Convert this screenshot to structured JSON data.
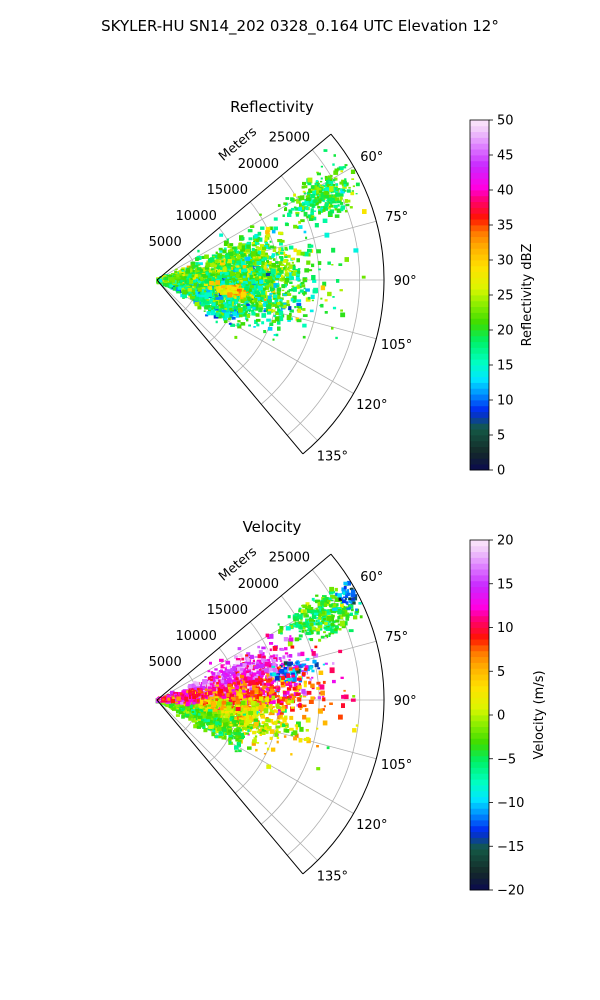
{
  "figure": {
    "title": "SKYLER-HU  SN14_202  0328_0.164 UTC Elevation 12°"
  },
  "chart_data": [
    {
      "type": "heatmap",
      "projection": "polar-sector",
      "title": "Reflectivity",
      "range_label": "Meters",
      "range_ticks": [
        5000,
        10000,
        15000,
        20000,
        25000
      ],
      "range_ticks_text": [
        "5000",
        "10000",
        "15000",
        "20000",
        "25000"
      ],
      "range_max": 28000,
      "azimuth_range": [
        50,
        140
      ],
      "azimuth_ticks": [
        60,
        75,
        90,
        105,
        120,
        135
      ],
      "azimuth_ticks_text": [
        "60°",
        "75°",
        "90°",
        "105°",
        "120°",
        "135°"
      ],
      "grid": true,
      "colorbar": {
        "label": "Reflectivity dBZ",
        "min": 0,
        "max": 50,
        "ticks": [
          0,
          5,
          10,
          15,
          20,
          25,
          30,
          35,
          40,
          45,
          50
        ],
        "ticks_text": [
          "0",
          "5",
          "10",
          "15",
          "20",
          "25",
          "30",
          "35",
          "40",
          "45",
          "50"
        ],
        "placement": "right"
      },
      "echo_regions": [
        {
          "az": 63,
          "r": 23000,
          "spread_az": 3.0,
          "spread_r": 2200,
          "count": 300,
          "mean": 20,
          "sd": 3
        },
        {
          "az": 78,
          "r": 11000,
          "spread_az": 7.0,
          "spread_r": 3800,
          "count": 650,
          "mean": 21,
          "sd": 4
        },
        {
          "az": 90,
          "r": 9000,
          "spread_az": 5.0,
          "spread_r": 5000,
          "count": 750,
          "mean": 21,
          "sd": 4
        },
        {
          "az": 100,
          "r": 9000,
          "spread_az": 6.0,
          "spread_r": 5000,
          "count": 750,
          "mean": 19,
          "sd": 4
        },
        {
          "az": 112,
          "r": 6500,
          "spread_az": 5.0,
          "spread_r": 3500,
          "count": 400,
          "mean": 17,
          "sd": 4
        },
        {
          "az": 84,
          "r": 3000,
          "spread_az": 6.0,
          "spread_r": 1800,
          "count": 400,
          "mean": 22,
          "sd": 4
        },
        {
          "az": 98,
          "r": 9500,
          "spread_az": 2.0,
          "spread_r": 1200,
          "count": 100,
          "mean": 30,
          "sd": 3
        }
      ]
    },
    {
      "type": "heatmap",
      "projection": "polar-sector",
      "title": "Velocity",
      "range_label": "Meters",
      "range_ticks": [
        5000,
        10000,
        15000,
        20000,
        25000
      ],
      "range_ticks_text": [
        "5000",
        "10000",
        "15000",
        "20000",
        "25000"
      ],
      "range_max": 28000,
      "azimuth_range": [
        50,
        140
      ],
      "azimuth_ticks": [
        60,
        75,
        90,
        105,
        120,
        135
      ],
      "azimuth_ticks_text": [
        "60°",
        "75°",
        "90°",
        "105°",
        "120°",
        "135°"
      ],
      "grid": true,
      "colorbar": {
        "label": "Velocity (m/s)",
        "min": -20,
        "max": 20,
        "ticks": [
          -20,
          -15,
          -10,
          -5,
          0,
          5,
          10,
          15,
          20
        ],
        "ticks_text": [
          "−20",
          "−15",
          "−10",
          "−5",
          "0",
          "5",
          "10",
          "15",
          "20"
        ],
        "placement": "right"
      },
      "echo_regions": [
        {
          "az": 63,
          "r": 23000,
          "spread_az": 3.0,
          "spread_r": 2200,
          "count": 300,
          "mean": -4,
          "sd": 2
        },
        {
          "az": 62,
          "r": 27000,
          "spread_az": 1.5,
          "spread_r": 800,
          "count": 50,
          "mean": -12,
          "sd": 2
        },
        {
          "az": 75,
          "r": 11000,
          "spread_az": 6.0,
          "spread_r": 4000,
          "count": 650,
          "mean": 14,
          "sd": 3
        },
        {
          "az": 78,
          "r": 17000,
          "spread_az": 2.5,
          "spread_r": 1500,
          "count": 70,
          "mean": -11,
          "sd": 2
        },
        {
          "az": 88,
          "r": 10000,
          "spread_az": 5.0,
          "spread_r": 5000,
          "count": 750,
          "mean": 9,
          "sd": 3
        },
        {
          "az": 100,
          "r": 9000,
          "spread_az": 6.0,
          "spread_r": 5000,
          "count": 750,
          "mean": 2,
          "sd": 3
        },
        {
          "az": 112,
          "r": 6000,
          "spread_az": 5.0,
          "spread_r": 3000,
          "count": 400,
          "mean": -3,
          "sd": 2
        },
        {
          "az": 85,
          "r": 2500,
          "spread_az": 6.0,
          "spread_r": 1500,
          "count": 350,
          "mean": 11,
          "sd": 3
        }
      ]
    }
  ]
}
